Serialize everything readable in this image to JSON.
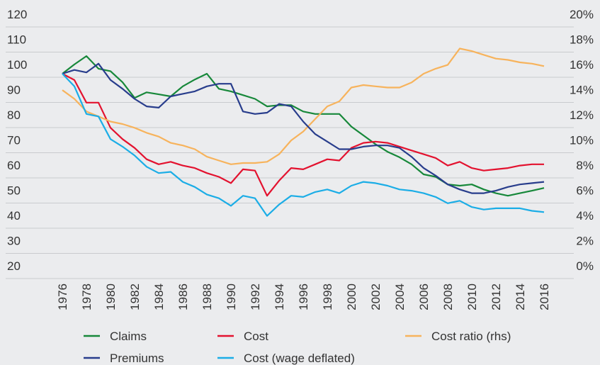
{
  "chart_data": {
    "type": "line",
    "x": [
      1976,
      1977,
      1978,
      1979,
      1980,
      1981,
      1982,
      1983,
      1984,
      1985,
      1986,
      1987,
      1988,
      1989,
      1990,
      1991,
      1992,
      1993,
      1994,
      1995,
      1996,
      1997,
      1998,
      1999,
      2000,
      2001,
      2002,
      2003,
      2004,
      2005,
      2006,
      2007,
      2008,
      2009,
      2010,
      2011,
      2012,
      2013,
      2014,
      2015,
      2016
    ],
    "xlim": [
      1976,
      2016
    ],
    "xticks": [
      1976,
      1978,
      1980,
      1982,
      1984,
      1986,
      1988,
      1990,
      1992,
      1994,
      1996,
      1998,
      2000,
      2002,
      2004,
      2006,
      2008,
      2010,
      2012,
      2014,
      2016
    ],
    "ylim": [
      20,
      120
    ],
    "yticks": [
      20,
      30,
      40,
      50,
      60,
      70,
      80,
      90,
      100,
      110,
      120
    ],
    "y2lim": [
      0,
      20
    ],
    "y2ticks": [
      {
        "value": 0,
        "label": "0%"
      },
      {
        "value": 2,
        "label": "2%"
      },
      {
        "value": 4,
        "label": "4%"
      },
      {
        "value": 6,
        "label": "6%"
      },
      {
        "value": 8,
        "label": "8%"
      },
      {
        "value": 10,
        "label": "10%"
      },
      {
        "value": 12,
        "label": "12%"
      },
      {
        "value": 14,
        "label": "14%"
      },
      {
        "value": 16,
        "label": "16%"
      },
      {
        "value": 18,
        "label": "18%"
      },
      {
        "value": 20,
        "label": "20%"
      }
    ],
    "grid": true,
    "series": [
      {
        "name": "Claims",
        "color": "#17883a",
        "values": [
          100,
          103.7,
          107,
          102,
          101,
          96.6,
          90.4,
          92.6,
          91.8,
          91,
          95,
          97.7,
          100,
          94,
          93,
          91.5,
          90,
          87,
          87.5,
          87.5,
          85,
          84,
          84,
          84,
          79,
          75.5,
          72,
          69,
          66.8,
          64,
          60,
          59,
          56,
          55.5,
          56,
          54,
          52.5,
          51.5,
          52.5,
          53.5,
          54.6
        ]
      },
      {
        "name": "Cost",
        "color": "#e3122f",
        "values": [
          100,
          97.5,
          88.5,
          88.5,
          78.5,
          74,
          70.5,
          66,
          64,
          65,
          63.5,
          62.5,
          60.5,
          59,
          56.5,
          62,
          61.5,
          51.5,
          57.5,
          62.5,
          62,
          64,
          66,
          65.5,
          70.5,
          72.5,
          73,
          72.5,
          71,
          69.5,
          68,
          66.5,
          63.5,
          65,
          62.5,
          61.5,
          62,
          62.5,
          63.5,
          64,
          64
        ]
      },
      {
        "name": "Cost ratio (rhs)",
        "color": "#f7b35c",
        "axis": "y2",
        "values": [
          14.7,
          14.0,
          13.0,
          12.6,
          12.2,
          12.0,
          11.7,
          11.3,
          11.0,
          10.5,
          10.3,
          10.0,
          9.4,
          9.1,
          8.8,
          8.9,
          8.9,
          9.0,
          9.6,
          10.7,
          11.4,
          12.4,
          13.4,
          13.8,
          14.9,
          15.1,
          15.0,
          14.9,
          14.9,
          15.3,
          16.0,
          16.4,
          16.7,
          18.0,
          17.8,
          17.5,
          17.2,
          17.1,
          16.9,
          16.8,
          16.6
        ]
      },
      {
        "name": "Premiums",
        "color": "#283d8c",
        "values": [
          100,
          101.5,
          100.5,
          104,
          97.5,
          94,
          90,
          87,
          86.5,
          91,
          92,
          93,
          95,
          96,
          96,
          85,
          84,
          84.5,
          88,
          87,
          81,
          76,
          73,
          70,
          70,
          71,
          71.5,
          71.5,
          70.5,
          67,
          62.5,
          59.5,
          56,
          54,
          52.5,
          52.5,
          53.5,
          55,
          56,
          56.5,
          57
        ]
      },
      {
        "name": "Cost (wage deflated)",
        "color": "#1badE6",
        "values": [
          100,
          95,
          84,
          83,
          74,
          71,
          67.5,
          63,
          60.5,
          61,
          57,
          55,
          52,
          50.5,
          47.5,
          51.5,
          50.5,
          43.5,
          48,
          51.5,
          51,
          53,
          54,
          52.5,
          55.5,
          57,
          56.5,
          55.5,
          54,
          53.5,
          52.5,
          51,
          48.5,
          49.5,
          47,
          46,
          46.5,
          46.5,
          46.5,
          45.5,
          45
        ]
      }
    ]
  }
}
